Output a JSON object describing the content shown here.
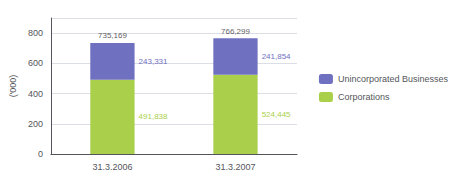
{
  "chart_data": {
    "type": "bar",
    "stacked": true,
    "categories": [
      "31.3.2006",
      "31.3.2007"
    ],
    "ylabel": "('000)",
    "ylim": [
      0,
      900
    ],
    "yticks": [
      0,
      200,
      400,
      600,
      800
    ],
    "grid": true,
    "legend": "right",
    "data_labels": true,
    "series": [
      {
        "name": "Corporations",
        "color": "#aad04b",
        "values": [
          491.838,
          524.445
        ],
        "value_labels": [
          "491,838",
          "524,445"
        ]
      },
      {
        "name": "Unincorporated Businesses",
        "color": "#7070c0",
        "values": [
          243.331,
          241.854
        ],
        "value_labels": [
          "243,331",
          "241,854"
        ]
      }
    ],
    "totals": {
      "values": [
        735.169,
        766.299
      ],
      "value_labels": [
        "735,169",
        "766,299"
      ],
      "color": "#333333"
    }
  }
}
